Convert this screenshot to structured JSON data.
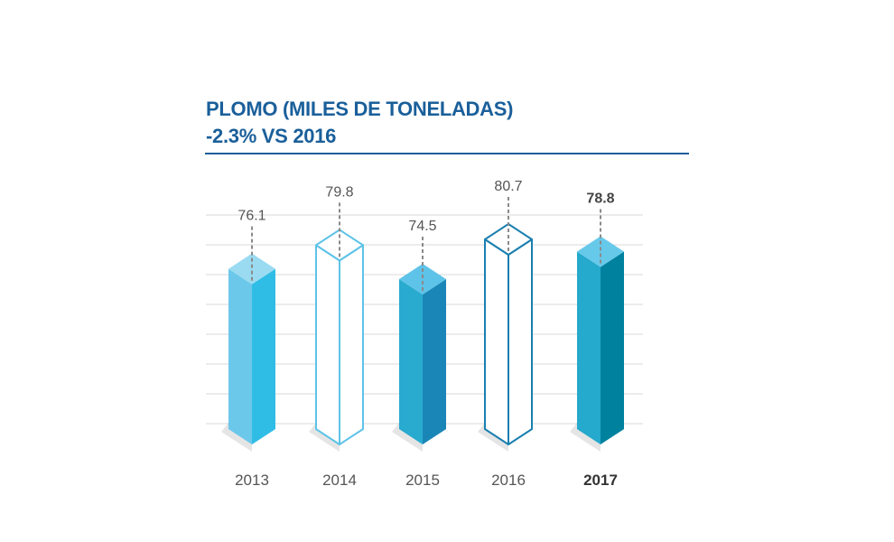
{
  "header": {
    "title": "PLOMO (MILES DE TONELADAS)",
    "subtitle": "-2.3% VS 2016"
  },
  "chart_data": {
    "type": "bar",
    "title": "PLOMO (MILES DE TONELADAS)",
    "subtitle": "-2.3% VS 2016",
    "categories": [
      "2013",
      "2014",
      "2015",
      "2016",
      "2017"
    ],
    "values": [
      76.1,
      79.8,
      74.5,
      80.7,
      78.8
    ],
    "value_labels": [
      "76.1",
      "79.8",
      "74.5",
      "80.7",
      "78.8"
    ],
    "highlight": "2017",
    "grid": true,
    "bar_styles": [
      {
        "style": "solid",
        "front": "#6cc8ea",
        "side": "#2fbde6",
        "top": "#9adbf1"
      },
      {
        "style": "outline",
        "stroke": "#5ec3e8"
      },
      {
        "style": "solid",
        "front": "#29aacf",
        "side": "#1a86b8",
        "top": "#5ec3e8"
      },
      {
        "style": "outline",
        "stroke": "#1a7fb0"
      },
      {
        "style": "solid",
        "front": "#25a9cc",
        "side": "#00829f",
        "top": "#66c9ea"
      }
    ],
    "colors": {
      "title": "#1a5f9a",
      "grid": "#d9d9d9",
      "label": "#555555"
    }
  }
}
